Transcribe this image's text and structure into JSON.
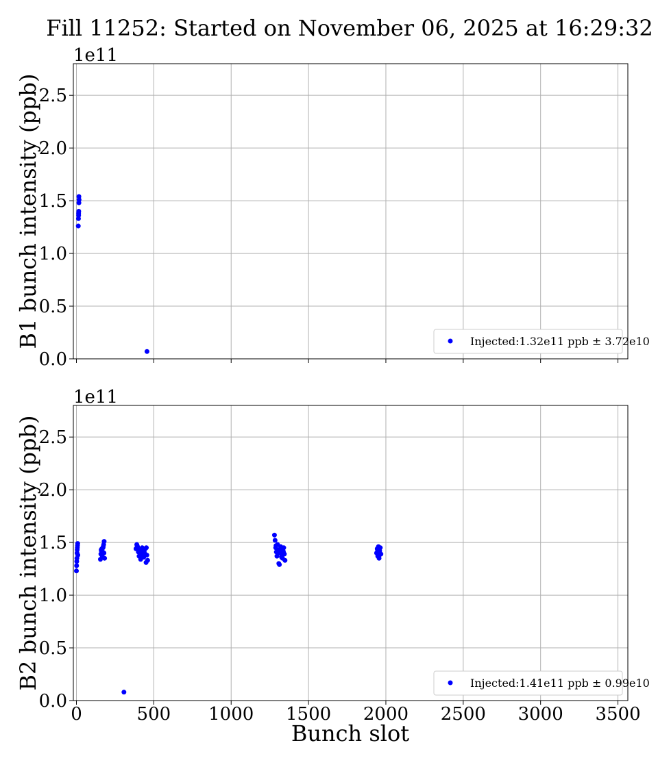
{
  "figure": {
    "title": "Fill 11252: Started on November 06, 2025 at 16:29:32",
    "xlabel": "Bunch slot"
  },
  "colors": {
    "marker": "#0000ff",
    "grid": "#b0b0b0",
    "frame": "#000000"
  },
  "chart_data": [
    {
      "type": "scatter",
      "ylabel": "B1 bunch intensity (ppb)",
      "y_scale_label": "1e11",
      "xlim": [
        -20,
        3564
      ],
      "ylim": [
        0,
        280000000000.0
      ],
      "xticks": [
        0,
        500,
        1000,
        1500,
        2000,
        2500,
        3000,
        3500
      ],
      "xtick_labels_shown": false,
      "yticks": [
        0,
        50000000000.0,
        100000000000.0,
        150000000000.0,
        200000000000.0,
        250000000000.0
      ],
      "ytick_labels": [
        "0.0",
        "0.5",
        "1.0",
        "1.5",
        "2.0",
        "2.5"
      ],
      "grid": true,
      "legend_position": "lower right",
      "series": [
        {
          "name": "Injected:1.32e11 ppb ± 3.72e10",
          "color": "#0000ff",
          "x": [
            12,
            13,
            14,
            15,
            16,
            17,
            456
          ],
          "y": [
            126000000000.0,
            133000000000.0,
            138000000000.0,
            140000000000.0,
            148000000000.0,
            151000000000.0,
            7000000000.0
          ]
        }
      ],
      "extra_points": [
        [
          16,
          154000000000.0
        ],
        [
          14,
          136000000000.0
        ]
      ]
    },
    {
      "type": "scatter",
      "ylabel": "B2 bunch intensity (ppb)",
      "y_scale_label": "1e11",
      "xlim": [
        -20,
        3564
      ],
      "ylim": [
        0,
        280000000000.0
      ],
      "xticks": [
        0,
        500,
        1000,
        1500,
        2000,
        2500,
        3000,
        3500
      ],
      "xtick_labels": [
        "0",
        "500",
        "1000",
        "1500",
        "2000",
        "2500",
        "3000",
        "3500"
      ],
      "yticks": [
        0,
        50000000000.0,
        100000000000.0,
        150000000000.0,
        200000000000.0,
        250000000000.0
      ],
      "ytick_labels": [
        "0.0",
        "0.5",
        "1.0",
        "1.5",
        "2.0",
        "2.5"
      ],
      "grid": true,
      "legend_position": "lower right",
      "series": [
        {
          "name": "Injected:1.41e11 ppb ± 0.99e10",
          "color": "#0000ff",
          "x": [
            0,
            1,
            2,
            3,
            4,
            5,
            6,
            7,
            8,
            9,
            155,
            158,
            161,
            164,
            167,
            170,
            173,
            176,
            179,
            182,
            160,
            166,
            172,
            178,
            385,
            390,
            395,
            400,
            405,
            410,
            415,
            420,
            425,
            430,
            435,
            440,
            445,
            450,
            455,
            460,
            392,
            408,
            422,
            438,
            452,
            1280,
            1284,
            1288,
            1292,
            1296,
            1300,
            1304,
            1308,
            1312,
            1316,
            1320,
            1324,
            1328,
            1332,
            1336,
            1340,
            1344,
            1348,
            1290,
            1302,
            1314,
            1326,
            1338,
            1940,
            1944,
            1948,
            1952,
            1956,
            1960,
            1964,
            1968,
            1946,
            1958,
            307
          ],
          "y": [
            123000000000.0,
            128000000000.0,
            132000000000.0,
            135000000000.0,
            140000000000.0,
            143000000000.0,
            145000000000.0,
            147000000000.0,
            149000000000.0,
            138000000000.0,
            134000000000.0,
            139000000000.0,
            142000000000.0,
            144000000000.0,
            136000000000.0,
            141000000000.0,
            146000000000.0,
            148000000000.0,
            151000000000.0,
            135000000000.0,
            143000000000.0,
            138000000000.0,
            145000000000.0,
            140000000000.0,
            144000000000.0,
            148000000000.0,
            146000000000.0,
            141000000000.0,
            137000000000.0,
            143000000000.0,
            134000000000.0,
            139000000000.0,
            145000000000.0,
            142000000000.0,
            136000000000.0,
            140000000000.0,
            144000000000.0,
            131000000000.0,
            138000000000.0,
            133000000000.0,
            147000000000.0,
            142000000000.0,
            136000000000.0,
            141000000000.0,
            145000000000.0,
            157000000000.0,
            152000000000.0,
            145000000000.0,
            141000000000.0,
            137000000000.0,
            148000000000.0,
            143000000000.0,
            130000000000.0,
            129000000000.0,
            140000000000.0,
            146000000000.0,
            144000000000.0,
            138000000000.0,
            135000000000.0,
            142000000000.0,
            145000000000.0,
            139000000000.0,
            133000000000.0,
            147000000000.0,
            140000000000.0,
            143000000000.0,
            136000000000.0,
            141000000000.0,
            140000000000.0,
            144000000000.0,
            137000000000.0,
            146000000000.0,
            135000000000.0,
            142000000000.0,
            145000000000.0,
            139000000000.0,
            143000000000.0,
            138000000000.0,
            8000000000.0
          ]
        }
      ]
    }
  ]
}
